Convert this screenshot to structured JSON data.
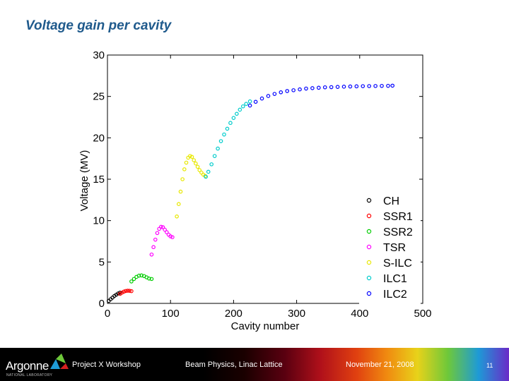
{
  "slide": {
    "title": "Voltage gain per cavity"
  },
  "footer": {
    "logo_text": "Argonne",
    "logo_subtext": "NATIONAL LABORATORY",
    "event": "Project X Workshop",
    "topic": "Beam Physics, Linac Lattice",
    "date": "November 21, 2008",
    "page": "11"
  },
  "chart_data": {
    "type": "scatter",
    "xlabel": "Cavity number",
    "ylabel": "Voltage (MV)",
    "xlim": [
      0,
      500
    ],
    "ylim": [
      0,
      30
    ],
    "xticks": [
      0,
      100,
      200,
      300,
      400,
      500
    ],
    "yticks": [
      0,
      5,
      10,
      15,
      20,
      25,
      30
    ],
    "grid": false,
    "legend_position": "bottom-right",
    "marker": "open-circle",
    "series": [
      {
        "name": "CH",
        "color": "#000000",
        "points": [
          [
            2,
            0.3
          ],
          [
            5,
            0.5
          ],
          [
            8,
            0.7
          ],
          [
            11,
            0.9
          ],
          [
            14,
            1.05
          ],
          [
            17,
            1.2
          ],
          [
            20,
            1.3
          ]
        ]
      },
      {
        "name": "SSR1",
        "color": "#ff0000",
        "points": [
          [
            20,
            1.15
          ],
          [
            23,
            1.3
          ],
          [
            26,
            1.42
          ],
          [
            29,
            1.5
          ],
          [
            32,
            1.53
          ],
          [
            35,
            1.52
          ],
          [
            38,
            1.48
          ]
        ]
      },
      {
        "name": "SSR2",
        "color": "#00cc00",
        "points": [
          [
            38,
            2.65
          ],
          [
            42,
            2.95
          ],
          [
            46,
            3.2
          ],
          [
            50,
            3.35
          ],
          [
            54,
            3.38
          ],
          [
            58,
            3.3
          ],
          [
            62,
            3.15
          ],
          [
            66,
            3.0
          ],
          [
            70,
            2.95
          ]
        ]
      },
      {
        "name": "TSR",
        "color": "#ff00ff",
        "points": [
          [
            70,
            5.9
          ],
          [
            73,
            6.8
          ],
          [
            76,
            7.7
          ],
          [
            79,
            8.5
          ],
          [
            82,
            9.0
          ],
          [
            85,
            9.25
          ],
          [
            88,
            9.2
          ],
          [
            91,
            8.9
          ],
          [
            94,
            8.6
          ],
          [
            97,
            8.3
          ],
          [
            100,
            8.1
          ],
          [
            103,
            8.0
          ]
        ]
      },
      {
        "name": "S-ILC",
        "color": "#e8e800",
        "points": [
          [
            110,
            10.5
          ],
          [
            113,
            12.0
          ],
          [
            116,
            13.5
          ],
          [
            119,
            15.0
          ],
          [
            122,
            16.2
          ],
          [
            125,
            17.0
          ],
          [
            128,
            17.6
          ],
          [
            131,
            17.8
          ],
          [
            134,
            17.7
          ],
          [
            137,
            17.3
          ],
          [
            140,
            16.9
          ],
          [
            143,
            16.5
          ],
          [
            146,
            16.1
          ],
          [
            149,
            15.8
          ],
          [
            152,
            15.55
          ],
          [
            155,
            15.4
          ]
        ]
      },
      {
        "name": "ILC1",
        "color": "#00cccc",
        "points": [
          [
            156,
            15.3
          ],
          [
            160,
            15.9
          ],
          [
            165,
            16.8
          ],
          [
            170,
            17.8
          ],
          [
            175,
            18.7
          ],
          [
            180,
            19.6
          ],
          [
            185,
            20.4
          ],
          [
            190,
            21.1
          ],
          [
            195,
            21.8
          ],
          [
            200,
            22.4
          ],
          [
            205,
            22.9
          ],
          [
            210,
            23.4
          ],
          [
            215,
            23.8
          ],
          [
            220,
            24.1
          ],
          [
            226,
            24.4
          ]
        ]
      },
      {
        "name": "ILC2",
        "color": "#0000ff",
        "points": [
          [
            226,
            23.9
          ],
          [
            235,
            24.35
          ],
          [
            245,
            24.75
          ],
          [
            255,
            25.05
          ],
          [
            265,
            25.3
          ],
          [
            275,
            25.5
          ],
          [
            285,
            25.65
          ],
          [
            295,
            25.75
          ],
          [
            305,
            25.85
          ],
          [
            315,
            25.95
          ],
          [
            325,
            26.0
          ],
          [
            335,
            26.05
          ],
          [
            345,
            26.1
          ],
          [
            355,
            26.12
          ],
          [
            365,
            26.15
          ],
          [
            375,
            26.18
          ],
          [
            385,
            26.2
          ],
          [
            395,
            26.22
          ],
          [
            405,
            26.24
          ],
          [
            415,
            26.25
          ],
          [
            425,
            26.26
          ],
          [
            435,
            26.27
          ],
          [
            445,
            26.28
          ],
          [
            452,
            26.3
          ]
        ]
      }
    ]
  }
}
